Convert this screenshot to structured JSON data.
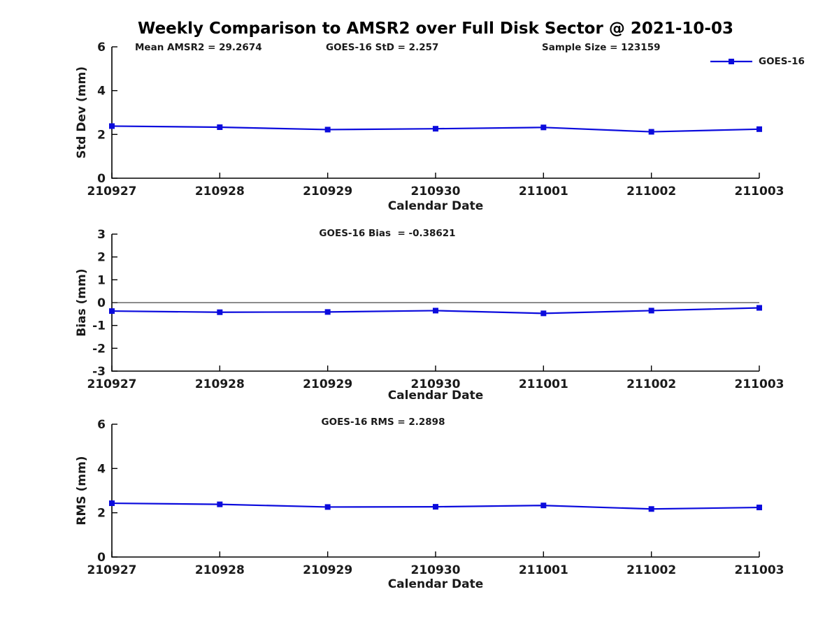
{
  "title": "Weekly Comparison to AMSR2 over Full Disk Sector @ 2021-10-03",
  "legend": {
    "label": "GOES-16",
    "color": "#0b0bdd",
    "marker": "square-marker-icon"
  },
  "annotations": {
    "mean_amsr2": "Mean AMSR2 = 29.2674",
    "goes_std": "GOES-16 StD = 2.257",
    "sample_size": "Sample Size = 123159",
    "goes_bias": "GOES-16 Bias  = -0.38621",
    "goes_rms": "GOES-16 RMS = 2.2898"
  },
  "colors": {
    "line": "#0b0bdd",
    "axis": "#000000",
    "text": "#1a1a1a",
    "zero_line": "#1a1a1a"
  },
  "chart_data": [
    {
      "type": "line",
      "x_categories": [
        "210927",
        "210928",
        "210929",
        "210930",
        "211001",
        "211002",
        "211003"
      ],
      "series": [
        {
          "name": "GOES-16",
          "values": [
            2.38,
            2.33,
            2.22,
            2.26,
            2.32,
            2.12,
            2.24
          ]
        }
      ],
      "xlabel": "Calendar Date",
      "ylabel": "Std Dev (mm)",
      "ylim": [
        0,
        6
      ],
      "yticks": [
        0,
        2,
        4,
        6
      ],
      "zero_line": false,
      "grid": false,
      "legend_position": "top-right-outside",
      "line_color": "#0b0bdd",
      "marker": "square"
    },
    {
      "type": "line",
      "x_categories": [
        "210927",
        "210928",
        "210929",
        "210930",
        "211001",
        "211002",
        "211003"
      ],
      "series": [
        {
          "name": "GOES-16",
          "values": [
            -0.37,
            -0.42,
            -0.41,
            -0.35,
            -0.47,
            -0.35,
            -0.23
          ]
        }
      ],
      "xlabel": "Calendar Date",
      "ylabel": "Bias (mm)",
      "ylim": [
        -3,
        3
      ],
      "yticks": [
        -3,
        -2,
        -1,
        0,
        1,
        2,
        3
      ],
      "zero_line": true,
      "grid": false,
      "line_color": "#0b0bdd",
      "marker": "square"
    },
    {
      "type": "line",
      "x_categories": [
        "210927",
        "210928",
        "210929",
        "210930",
        "211001",
        "211002",
        "211003"
      ],
      "series": [
        {
          "name": "GOES-16",
          "values": [
            2.43,
            2.38,
            2.26,
            2.27,
            2.33,
            2.17,
            2.24
          ]
        }
      ],
      "xlabel": "Calendar Date",
      "ylabel": "RMS (mm)",
      "ylim": [
        0,
        6
      ],
      "yticks": [
        0,
        2,
        4,
        6
      ],
      "zero_line": false,
      "grid": false,
      "line_color": "#0b0bdd",
      "marker": "square"
    }
  ]
}
